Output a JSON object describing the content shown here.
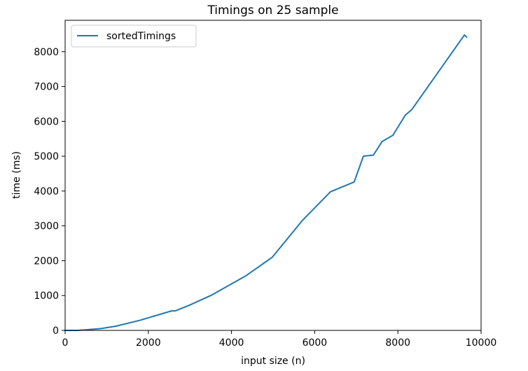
{
  "chart_data": {
    "type": "line",
    "title": "Timings on 25 sample",
    "xlabel": "input size (n)",
    "ylabel": "time (ms)",
    "xlim": [
      0,
      10000
    ],
    "ylim": [
      0,
      8900
    ],
    "xticks": [
      0,
      2000,
      4000,
      6000,
      8000,
      10000
    ],
    "yticks": [
      0,
      1000,
      2000,
      3000,
      4000,
      5000,
      6000,
      7000,
      8000
    ],
    "grid": false,
    "legend_position": "top-left",
    "series": [
      {
        "name": "sortedTimings",
        "color": "#1f77b4",
        "x": [
          0,
          300,
          850,
          1220,
          1800,
          2560,
          2650,
          3000,
          3500,
          4350,
          4980,
          5700,
          6380,
          6950,
          7170,
          7410,
          7620,
          7880,
          8180,
          8330,
          9600,
          9650
        ],
        "y": [
          0,
          0,
          50,
          120,
          290,
          560,
          560,
          730,
          1000,
          1570,
          2100,
          3150,
          3980,
          4260,
          5000,
          5030,
          5420,
          5600,
          6180,
          6330,
          8480,
          8420
        ]
      }
    ]
  }
}
